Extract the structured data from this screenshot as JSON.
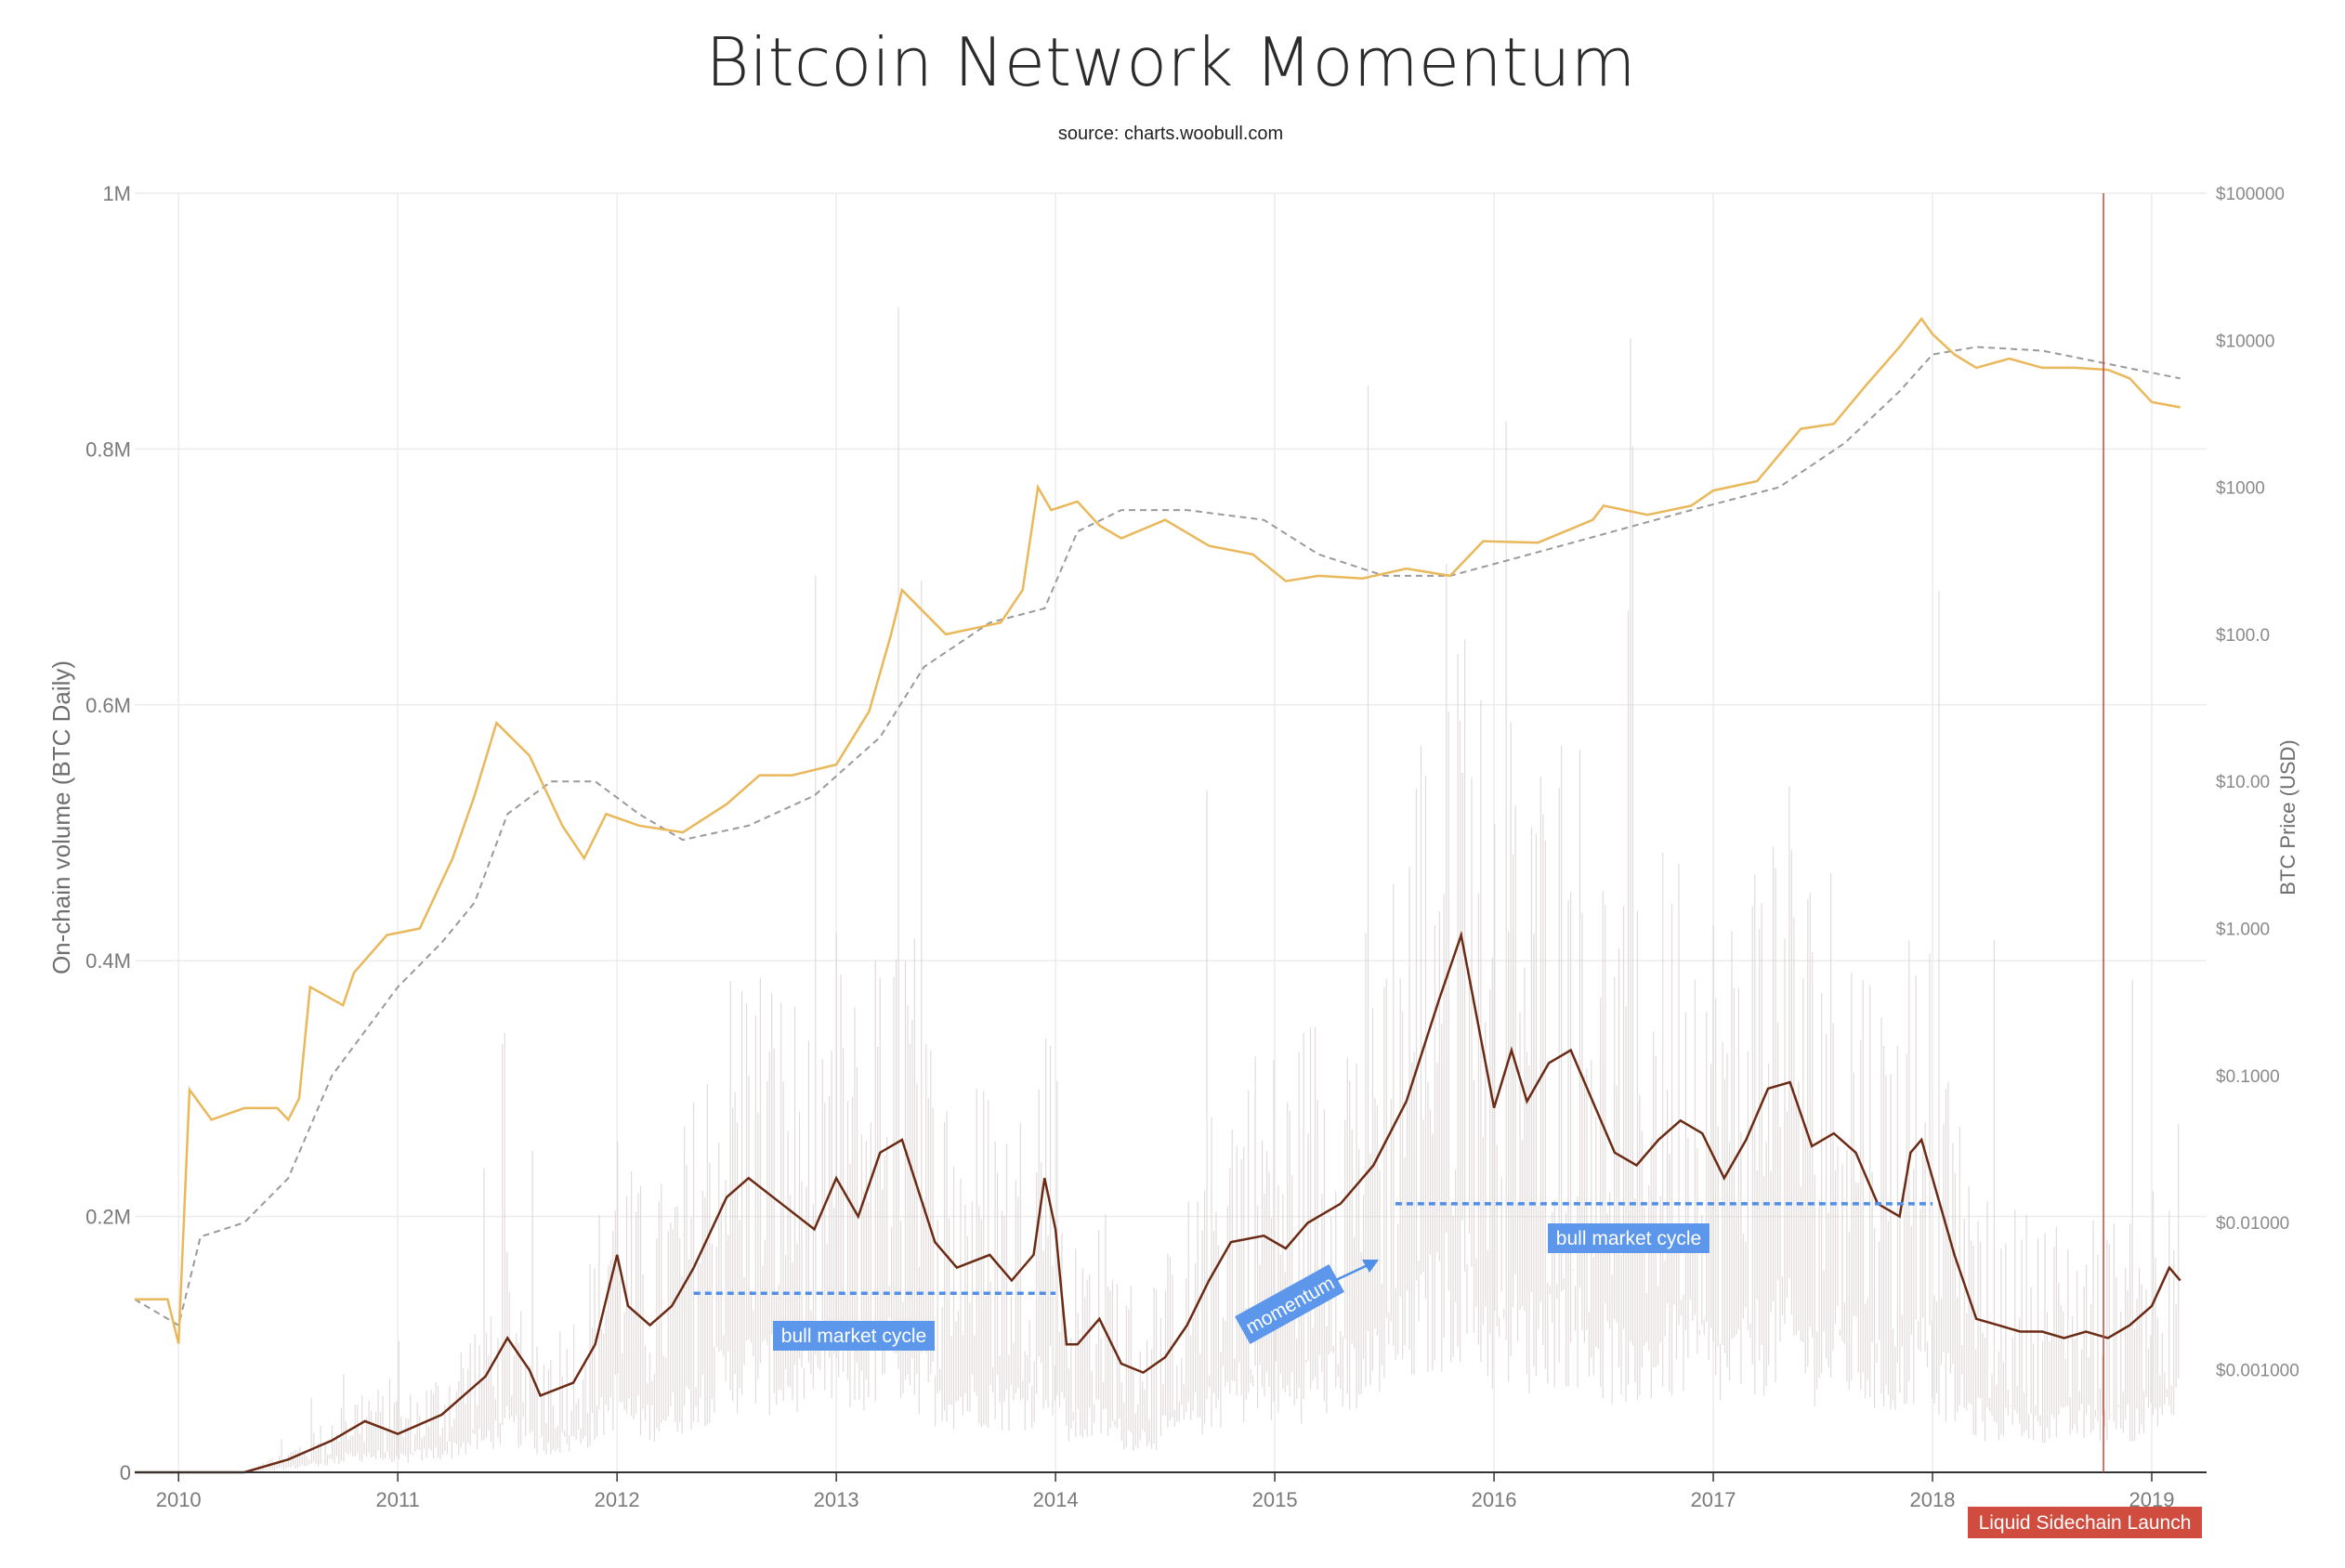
{
  "colors": {
    "price": "#e9b85a",
    "moving_average": "#9a9a9a",
    "momentum": "#6b2a14",
    "volume_bars": "#d9d0cf",
    "grid": "#ececec",
    "axis": "#333333",
    "annotation_blue": "#4f8fe8",
    "event_red": "#c9463a"
  },
  "chart_data": {
    "type": "line",
    "title": "Bitcoin Network Momentum",
    "subtitle": "source: charts.woobull.com",
    "ylabel": "On-chain volume (BTC Daily)",
    "y2label": "BTC Price (USD)",
    "y_scale": "linear",
    "y2_scale": "log",
    "xlim": [
      2009.8,
      2019.25
    ],
    "ylim": [
      0,
      1000000
    ],
    "y2lim": [
      0.0002,
      100000
    ],
    "grid": true,
    "legend": "none",
    "x_ticks": [
      "2010",
      "2011",
      "2012",
      "2013",
      "2014",
      "2015",
      "2016",
      "2017",
      "2018",
      "2019"
    ],
    "x_tick_values": [
      2010,
      2011,
      2012,
      2013,
      2014,
      2015,
      2016,
      2017,
      2018,
      2019
    ],
    "y_ticks": [
      "0",
      "0.2M",
      "0.4M",
      "0.6M",
      "0.8M",
      "1M"
    ],
    "y_tick_values": [
      0,
      200000,
      400000,
      600000,
      800000,
      1000000
    ],
    "y2_ticks": [
      "$0.001000",
      "$0.01000",
      "$0.1000",
      "$1.000",
      "$10.00",
      "$100.0",
      "$1000",
      "$10000",
      "$100000"
    ],
    "y2_tick_values": [
      0.001,
      0.01,
      0.1,
      1,
      10,
      100,
      1000,
      10000,
      100000
    ],
    "series": [
      {
        "key": "momentum",
        "axis": "y",
        "x": [
          2009.8,
          2010.0,
          2010.3,
          2010.5,
          2010.7,
          2010.85,
          2011.0,
          2011.2,
          2011.4,
          2011.5,
          2011.6,
          2011.65,
          2011.8,
          2011.9,
          2012.0,
          2012.05,
          2012.15,
          2012.25,
          2012.35,
          2012.5,
          2012.6,
          2012.75,
          2012.9,
          2013.0,
          2013.1,
          2013.2,
          2013.3,
          2013.45,
          2013.55,
          2013.7,
          2013.8,
          2013.9,
          2013.95,
          2014.0,
          2014.05,
          2014.1,
          2014.2,
          2014.3,
          2014.4,
          2014.5,
          2014.6,
          2014.7,
          2014.8,
          2014.95,
          2015.05,
          2015.15,
          2015.3,
          2015.45,
          2015.6,
          2015.75,
          2015.85,
          2015.95,
          2016.0,
          2016.08,
          2016.15,
          2016.25,
          2016.35,
          2016.45,
          2016.55,
          2016.65,
          2016.75,
          2016.85,
          2016.95,
          2017.05,
          2017.15,
          2017.25,
          2017.35,
          2017.45,
          2017.55,
          2017.65,
          2017.75,
          2017.85,
          2017.9,
          2017.95,
          2018.0,
          2018.1,
          2018.2,
          2018.3,
          2018.4,
          2018.5,
          2018.6,
          2018.7,
          2018.8,
          2018.9,
          2019.0,
          2019.08,
          2019.13
        ],
        "y": [
          0,
          0,
          0,
          10000,
          25000,
          40000,
          30000,
          45000,
          75000,
          105000,
          80000,
          60000,
          70000,
          100000,
          170000,
          130000,
          115000,
          130000,
          160000,
          215000,
          230000,
          210000,
          190000,
          230000,
          200000,
          250000,
          260000,
          180000,
          160000,
          170000,
          150000,
          170000,
          230000,
          190000,
          100000,
          100000,
          120000,
          85000,
          78000,
          90000,
          115000,
          150000,
          180000,
          185000,
          175000,
          195000,
          210000,
          240000,
          290000,
          370000,
          420000,
          330000,
          285000,
          330000,
          290000,
          320000,
          330000,
          290000,
          250000,
          240000,
          260000,
          275000,
          265000,
          230000,
          260000,
          300000,
          305000,
          255000,
          265000,
          250000,
          210000,
          200000,
          250000,
          260000,
          230000,
          170000,
          120000,
          115000,
          110000,
          110000,
          105000,
          110000,
          105000,
          115000,
          130000,
          160000,
          150000
        ]
      },
      {
        "key": "price",
        "axis": "y2",
        "x": [
          2009.8,
          2009.95,
          2010.0,
          2010.05,
          2010.15,
          2010.3,
          2010.45,
          2010.5,
          2010.55,
          2010.6,
          2010.75,
          2010.8,
          2010.95,
          2011.1,
          2011.25,
          2011.35,
          2011.45,
          2011.6,
          2011.75,
          2011.85,
          2011.95,
          2012.1,
          2012.3,
          2012.5,
          2012.65,
          2012.8,
          2013.0,
          2013.15,
          2013.25,
          2013.3,
          2013.5,
          2013.75,
          2013.85,
          2013.92,
          2013.98,
          2014.1,
          2014.2,
          2014.3,
          2014.5,
          2014.7,
          2014.9,
          2015.05,
          2015.2,
          2015.4,
          2015.6,
          2015.8,
          2015.95,
          2016.2,
          2016.45,
          2016.5,
          2016.7,
          2016.9,
          2017.0,
          2017.2,
          2017.4,
          2017.55,
          2017.7,
          2017.85,
          2017.95,
          2018.0,
          2018.1,
          2018.2,
          2018.35,
          2018.5,
          2018.65,
          2018.8,
          2018.9,
          2019.0,
          2019.13
        ],
        "y": [
          0.003,
          0.003,
          0.0015,
          0.08,
          0.05,
          0.06,
          0.06,
          0.05,
          0.07,
          0.4,
          0.3,
          0.5,
          0.9,
          1.0,
          3.0,
          8.0,
          25.0,
          15.0,
          5.0,
          3.0,
          6.0,
          5.0,
          4.5,
          7.0,
          11.0,
          11.0,
          13.0,
          30.0,
          100.0,
          200.0,
          100.0,
          120.0,
          200.0,
          1000.0,
          700.0,
          800.0,
          550.0,
          450.0,
          600.0,
          400.0,
          350.0,
          230.0,
          250.0,
          240.0,
          280.0,
          250.0,
          430.0,
          420.0,
          600.0,
          750.0,
          650.0,
          750.0,
          950.0,
          1100.0,
          2500.0,
          2700.0,
          5000.0,
          9000.0,
          14000.0,
          11000.0,
          8000.0,
          6500.0,
          7500.0,
          6500.0,
          6500.0,
          6300.0,
          5500.0,
          3800.0,
          3500.0
        ]
      },
      {
        "key": "moving_average",
        "axis": "y2",
        "x": [
          2009.8,
          2010.0,
          2010.1,
          2010.3,
          2010.5,
          2010.7,
          2011.0,
          2011.2,
          2011.35,
          2011.5,
          2011.7,
          2011.9,
          2012.1,
          2012.3,
          2012.6,
          2012.9,
          2013.2,
          2013.4,
          2013.7,
          2013.95,
          2014.1,
          2014.3,
          2014.6,
          2014.95,
          2015.2,
          2015.5,
          2015.8,
          2016.1,
          2016.5,
          2016.9,
          2017.3,
          2017.6,
          2017.85,
          2018.0,
          2018.2,
          2018.5,
          2019.13
        ],
        "y": [
          0.003,
          0.002,
          0.008,
          0.01,
          0.02,
          0.1,
          0.4,
          0.8,
          1.5,
          6.0,
          10.0,
          10.0,
          6.0,
          4.0,
          5.0,
          8.0,
          20.0,
          60.0,
          120.0,
          150.0,
          500.0,
          700.0,
          700.0,
          600.0,
          350.0,
          250.0,
          250.0,
          330.0,
          480.0,
          700.0,
          1000.0,
          2000.0,
          4500.0,
          8000.0,
          9000.0,
          8500.0,
          5500.0
        ]
      }
    ],
    "annotations": [
      {
        "key": "bull1",
        "text": "bull market cycle",
        "x_start": 2012.35,
        "x_end": 2014.0,
        "y": 140000
      },
      {
        "key": "bull2",
        "text": "bull market cycle",
        "x_start": 2015.55,
        "x_end": 2018.0,
        "y": 210000
      },
      {
        "key": "momentum",
        "text": "momentum"
      },
      {
        "key": "liquid",
        "text": "Liquid Sidechain Launch",
        "x": 2018.78
      }
    ]
  }
}
